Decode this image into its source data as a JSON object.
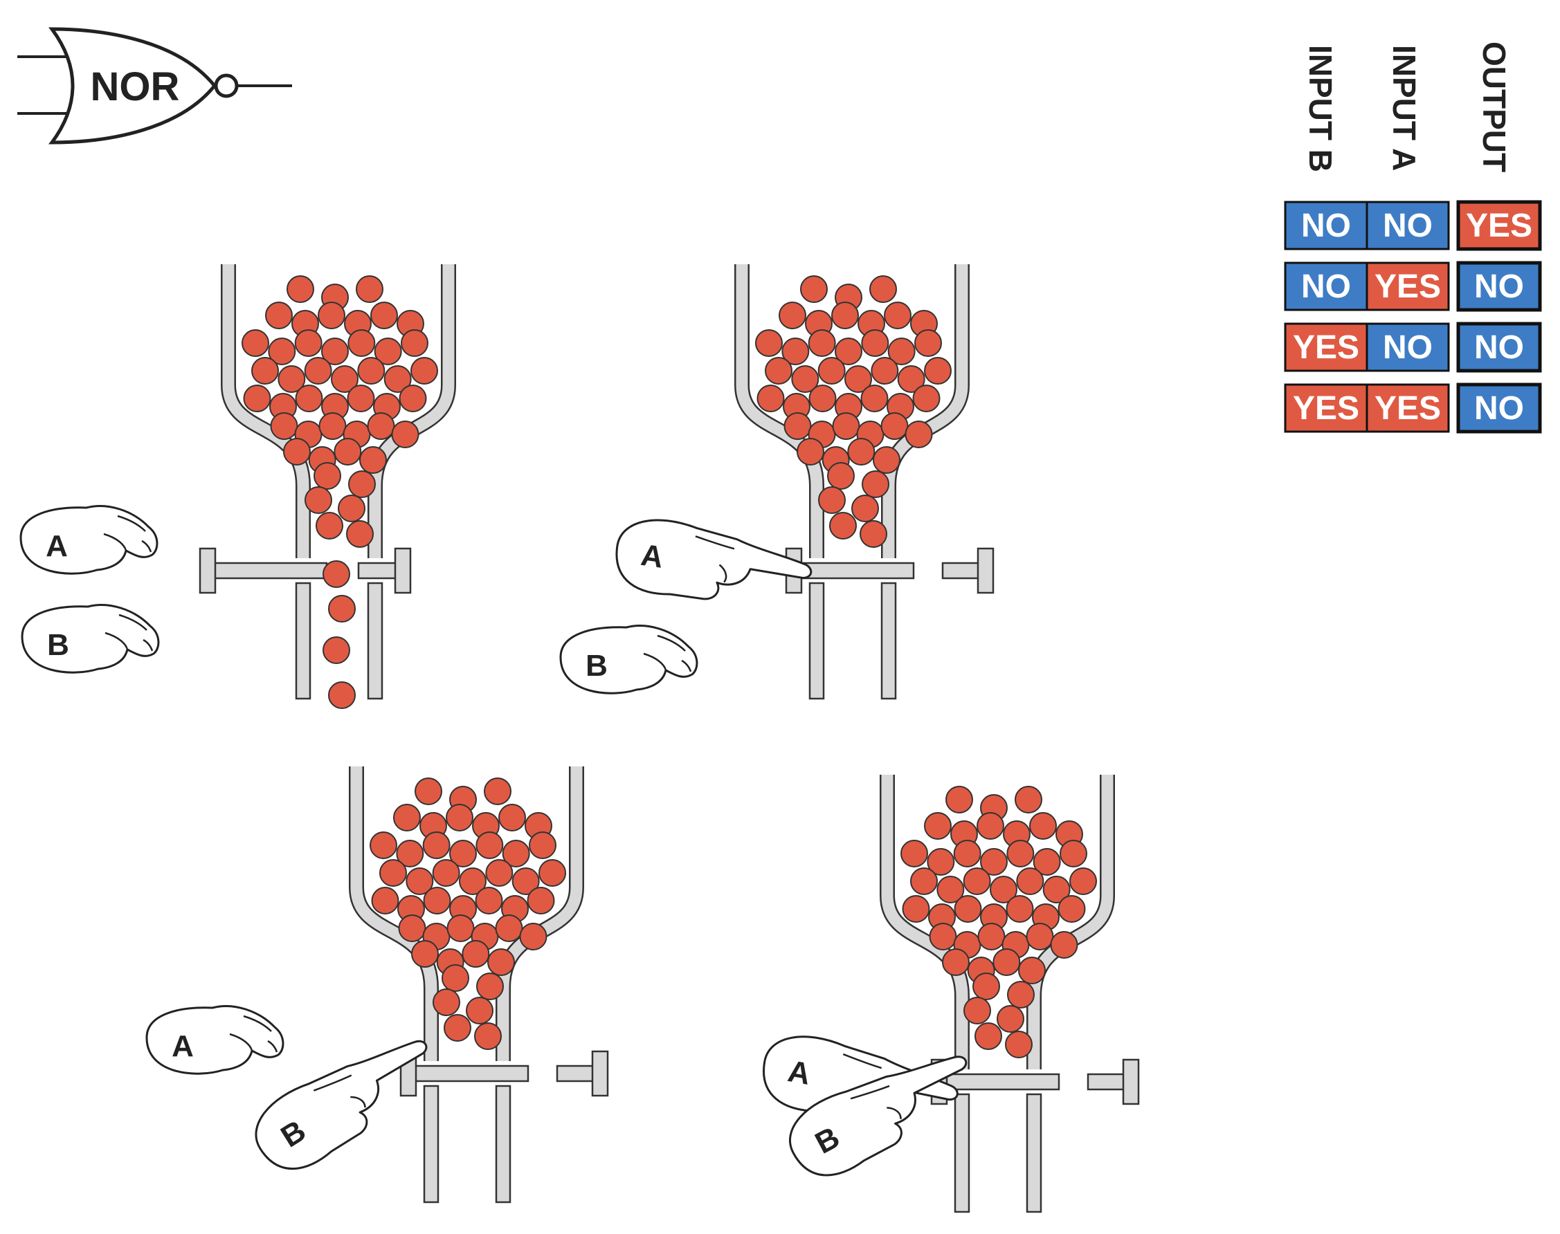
{
  "gate": {
    "name": "NOR"
  },
  "colors": {
    "ball": "#e05a43",
    "tube": "#d9d9d9",
    "no": "#3e7dc5",
    "yes": "#e05a43",
    "outline": "#222222"
  },
  "truth_table": {
    "headers": [
      "INPUT B",
      "INPUT A",
      "OUTPUT"
    ],
    "rows": [
      {
        "b": "NO",
        "a": "NO",
        "out": "YES"
      },
      {
        "b": "NO",
        "a": "YES",
        "out": "NO"
      },
      {
        "b": "YES",
        "a": "NO",
        "out": "NO"
      },
      {
        "b": "YES",
        "a": "YES",
        "out": "NO"
      }
    ]
  },
  "panels": [
    {
      "id": "none-pressed",
      "a_label": "A",
      "b_label": "B",
      "a_pressed": false,
      "b_pressed": false,
      "flowing": true
    },
    {
      "id": "a-pressed",
      "a_label": "A",
      "b_label": "B",
      "a_pressed": true,
      "b_pressed": false,
      "flowing": false
    },
    {
      "id": "b-pressed",
      "a_label": "A",
      "b_label": "B",
      "a_pressed": false,
      "b_pressed": true,
      "flowing": false
    },
    {
      "id": "both-pressed",
      "a_label": "A",
      "b_label": "B",
      "a_pressed": true,
      "b_pressed": true,
      "flowing": false
    }
  ]
}
